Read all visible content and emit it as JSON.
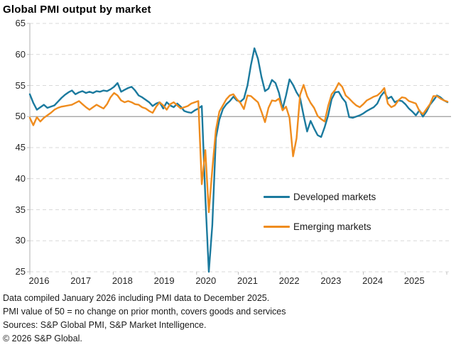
{
  "title": "Global PMI output by market",
  "colors": {
    "developed": "#1b7a9e",
    "emerging": "#ef8c1e",
    "grid": "#d9d9d9",
    "reference_line": "#9c9c9c",
    "axis": "#bfbfbf",
    "text": "#1a1a1a"
  },
  "footnotes": [
    "Data compiled January 2026 including PMI data to December 2025.",
    "PMI value of 50 = no change on prior month, covers goods and services",
    "Sources: S&P Global PMI, S&P Market Intelligence.",
    "© 2026 S&P Global."
  ],
  "chart_data": {
    "type": "line",
    "title": "Global PMI output by market",
    "frequency": "monthly",
    "x_start": "2016-01",
    "x_end": "2025-12",
    "x_tick_labels": [
      "2016",
      "2017",
      "2018",
      "2019",
      "2020",
      "2021",
      "2022",
      "2023",
      "2024",
      "2025"
    ],
    "ylim": [
      25,
      65
    ],
    "y_ticks": [
      25,
      30,
      35,
      40,
      45,
      50,
      55,
      60,
      65
    ],
    "reference_line": 50,
    "grid": "horizontal-dashed",
    "legend_position": "inside-right",
    "series": [
      {
        "name": "Developed markets",
        "color": "#1b7a9e",
        "values": [
          53.6,
          52.2,
          51.1,
          51.5,
          51.9,
          51.4,
          51.6,
          51.8,
          52.4,
          53.0,
          53.5,
          53.9,
          54.2,
          53.6,
          53.9,
          54.1,
          53.8,
          54.0,
          53.8,
          54.1,
          54.0,
          54.2,
          54.1,
          54.4,
          54.8,
          55.4,
          54.0,
          54.3,
          54.6,
          54.8,
          54.2,
          53.4,
          53.1,
          52.7,
          52.3,
          51.7,
          52.1,
          52.3,
          51.3,
          52.3,
          51.8,
          51.5,
          52.1,
          51.6,
          50.9,
          50.7,
          50.6,
          51.0,
          51.3,
          51.7,
          37.0,
          25.0,
          32.5,
          46.5,
          49.5,
          51.2,
          52.0,
          52.5,
          53.2,
          52.6,
          52.4,
          52.9,
          55.0,
          58.3,
          61.0,
          59.3,
          56.4,
          54.1,
          54.5,
          55.9,
          55.4,
          53.8,
          51.2,
          53.4,
          56.0,
          55.1,
          53.9,
          53.0,
          50.2,
          47.6,
          49.3,
          48.1,
          47.0,
          46.7,
          48.3,
          50.2,
          52.8,
          53.9,
          54.0,
          53.0,
          52.3,
          49.9,
          49.8,
          50.0,
          50.2,
          50.5,
          50.9,
          51.2,
          51.5,
          52.1,
          53.3,
          54.0,
          52.9,
          53.2,
          52.3,
          52.6,
          52.5,
          52.0,
          51.3,
          50.8,
          50.2,
          51.0,
          50.0,
          50.8,
          51.9,
          52.6,
          53.4,
          53.1,
          52.6,
          52.3
        ]
      },
      {
        "name": "Emerging markets",
        "color": "#ef8c1e",
        "values": [
          49.8,
          48.6,
          49.9,
          49.2,
          49.8,
          50.2,
          50.6,
          51.1,
          51.4,
          51.6,
          51.7,
          51.8,
          51.9,
          52.2,
          52.5,
          52.0,
          51.5,
          51.1,
          51.5,
          51.9,
          51.6,
          51.3,
          52.0,
          53.1,
          53.8,
          53.4,
          52.6,
          52.3,
          52.5,
          52.3,
          52.0,
          51.9,
          51.5,
          51.3,
          50.9,
          50.6,
          51.6,
          52.3,
          51.8,
          51.1,
          52.0,
          52.3,
          51.8,
          51.3,
          51.5,
          51.7,
          52.1,
          52.3,
          52.5,
          39.1,
          44.6,
          34.6,
          41.5,
          47.8,
          50.8,
          51.8,
          52.8,
          53.4,
          53.6,
          52.8,
          52.2,
          51.2,
          53.4,
          53.3,
          52.8,
          52.3,
          50.8,
          49.1,
          51.4,
          52.6,
          52.5,
          52.9,
          51.0,
          51.6,
          49.8,
          43.6,
          46.5,
          53.5,
          55.1,
          53.3,
          52.2,
          51.4,
          50.1,
          49.6,
          49.2,
          51.7,
          53.6,
          54.3,
          55.4,
          54.8,
          53.4,
          52.9,
          52.3,
          51.8,
          51.5,
          52.0,
          52.6,
          52.9,
          53.2,
          53.4,
          53.9,
          54.6,
          52.1,
          51.5,
          51.8,
          52.6,
          53.1,
          53.0,
          52.5,
          52.3,
          52.1,
          50.9,
          50.4,
          51.2,
          52.0,
          53.3,
          53.3,
          52.9,
          52.6,
          52.4
        ]
      }
    ]
  }
}
